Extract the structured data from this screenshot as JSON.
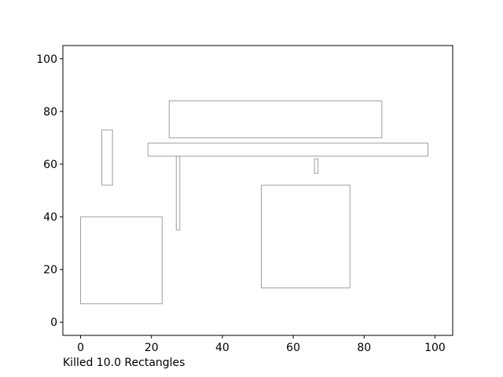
{
  "chart_data": {
    "type": "rectangles",
    "title": "",
    "xlabel": "Killed 10.0 Rectangles",
    "ylabel": "",
    "xlim": [
      -5,
      105
    ],
    "ylim": [
      -5,
      105
    ],
    "xticks": [
      0,
      20,
      40,
      60,
      80,
      100
    ],
    "yticks": [
      0,
      20,
      40,
      60,
      80,
      100
    ],
    "rectangles": [
      {
        "x": 25,
        "y": 70,
        "width": 60,
        "height": 14
      },
      {
        "x": 19,
        "y": 63,
        "width": 79,
        "height": 5
      },
      {
        "x": 6,
        "y": 52,
        "width": 3,
        "height": 21
      },
      {
        "x": 27,
        "y": 35,
        "width": 1,
        "height": 28
      },
      {
        "x": 66,
        "y": 56.5,
        "width": 1,
        "height": 5.5
      },
      {
        "x": 51,
        "y": 13,
        "width": 25,
        "height": 39
      },
      {
        "x": 0,
        "y": 7,
        "width": 23,
        "height": 33
      }
    ],
    "rect_edge_color": "#9e9e9e"
  }
}
